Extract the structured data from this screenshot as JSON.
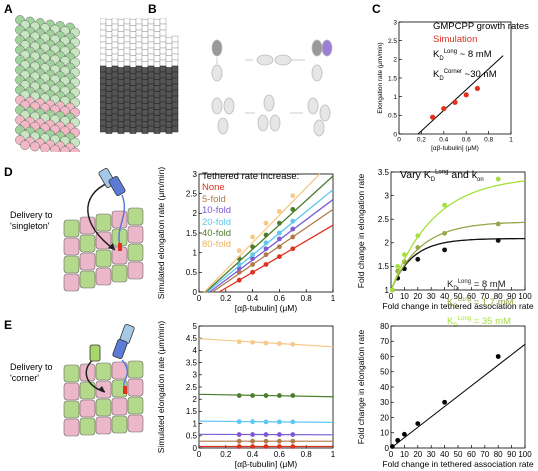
{
  "panel_labels": {
    "A": "A",
    "B": "B",
    "C": "C",
    "D": "D",
    "E": "E"
  },
  "side_labels": {
    "D": [
      "Delivery to",
      "'singleton'"
    ],
    "E": [
      "Delivery to",
      "'corner'"
    ]
  },
  "legend_c": {
    "line1": "GMPCPP growth rates",
    "line2": "Simulation",
    "kd_long": "~ 8 mM",
    "kd_corner": "~30 nM"
  },
  "legend_d": {
    "title": "Tethered rate increase:",
    "items": [
      "None",
      "5-fold",
      "10-fold",
      "20-fold",
      "40-fold",
      "80-fold"
    ]
  },
  "legend_f": {
    "title_prefix": "Vary K",
    "title_suffix": " and k",
    "items": [
      "= 8 mM",
      "= 1.7 mM",
      "= 35 mM"
    ]
  },
  "colors": {
    "none": "#e0301e",
    "f5": "#b07a4a",
    "f10": "#7b5bd6",
    "f20": "#5fc7f0",
    "f40": "#4b7d2c",
    "f80": "#f5c98a",
    "green_light": "#a6df3c",
    "green_mid": "#97a64a",
    "simulation": "#e0301e"
  },
  "chart_data": [
    {
      "type": "scatter",
      "panel": "C",
      "xlabel": "[αβ-tubulin] (μM)",
      "ylabel": "Elongation rate (μm/min)",
      "xlim": [
        0,
        1
      ],
      "ylim": [
        0,
        3
      ],
      "xticks": [
        0,
        0.2,
        0.4,
        0.6,
        0.8,
        1
      ],
      "yticks": [
        0,
        0.5,
        1,
        1.5,
        2,
        2.5,
        3
      ],
      "series": [
        {
          "name": "Simulation",
          "x": [
            0.3,
            0.4,
            0.5,
            0.6,
            0.7
          ],
          "y": [
            0.45,
            0.68,
            0.85,
            1.05,
            1.22
          ]
        }
      ],
      "fit": {
        "x": [
          0.17,
          0.93
        ],
        "y": [
          0,
          2.1
        ]
      }
    },
    {
      "type": "line",
      "panel": "D-mid",
      "xlabel": "[αβ-tubulin] (μM)",
      "ylabel": "Simulated elongation rate (μm/min)",
      "xlim": [
        0,
        1
      ],
      "ylim": [
        0,
        3
      ],
      "xticks": [
        0,
        0.2,
        0.4,
        0.6,
        0.8,
        1
      ],
      "yticks": [
        0,
        0.5,
        1,
        1.5,
        2,
        2.5,
        3
      ],
      "series": [
        {
          "name": "None",
          "x": [
            0.3,
            0.4,
            0.5,
            0.6,
            0.7
          ],
          "y": [
            0.3,
            0.5,
            0.7,
            0.9,
            1.1
          ],
          "fit": [
            [
              0.15,
              0
            ],
            [
              1,
              1.7
            ]
          ]
        },
        {
          "name": "5-fold",
          "x": [
            0.3,
            0.4,
            0.5,
            0.6,
            0.7
          ],
          "y": [
            0.5,
            0.7,
            0.95,
            1.15,
            1.4
          ],
          "fit": [
            [
              0.1,
              0
            ],
            [
              1,
              2.1
            ]
          ]
        },
        {
          "name": "10-fold",
          "x": [
            0.3,
            0.4,
            0.5,
            0.6,
            0.7
          ],
          "y": [
            0.6,
            0.85,
            1.1,
            1.35,
            1.6
          ],
          "fit": [
            [
              0.08,
              0
            ],
            [
              1,
              2.35
            ]
          ]
        },
        {
          "name": "20-fold",
          "x": [
            0.3,
            0.4,
            0.5,
            0.6,
            0.7
          ],
          "y": [
            0.7,
            0.95,
            1.25,
            1.5,
            1.8
          ],
          "fit": [
            [
              0.06,
              0
            ],
            [
              1,
              2.6
            ]
          ]
        },
        {
          "name": "40-fold",
          "x": [
            0.3,
            0.4,
            0.5,
            0.6,
            0.7
          ],
          "y": [
            0.85,
            1.15,
            1.45,
            1.75,
            2.1
          ],
          "fit": [
            [
              0.05,
              0
            ],
            [
              1,
              2.95
            ]
          ]
        },
        {
          "name": "80-fold",
          "x": [
            0.3,
            0.4,
            0.5,
            0.6,
            0.7
          ],
          "y": [
            1.05,
            1.4,
            1.75,
            2.05,
            2.45
          ],
          "fit": [
            [
              0.04,
              0
            ],
            [
              0.9,
              3
            ]
          ]
        }
      ]
    },
    {
      "type": "line",
      "panel": "D-right",
      "xlabel": "Fold change in tethered association rate",
      "ylabel": "Fold change in elongation rate",
      "xlim": [
        0,
        100
      ],
      "ylim": [
        1,
        3.5
      ],
      "xticks": [
        0,
        10,
        20,
        30,
        40,
        50,
        60,
        70,
        80,
        90,
        100
      ],
      "yticks": [
        1,
        1.5,
        2,
        2.5,
        3,
        3.5
      ],
      "series": [
        {
          "name": "8 mM",
          "x": [
            1,
            5,
            10,
            20,
            40,
            80
          ],
          "y": [
            1,
            1.25,
            1.45,
            1.65,
            1.85,
            2.05
          ]
        },
        {
          "name": "1.7 mM",
          "x": [
            1,
            5,
            10,
            20,
            40,
            80
          ],
          "y": [
            1,
            1.4,
            1.6,
            1.9,
            2.2,
            2.4
          ]
        },
        {
          "name": "35 mM",
          "x": [
            1,
            5,
            10,
            20,
            40,
            80
          ],
          "y": [
            1,
            1.5,
            1.75,
            2.15,
            2.8,
            3.35
          ]
        }
      ]
    },
    {
      "type": "line",
      "panel": "E-mid",
      "xlabel": "[αβ-tubulin] (μM)",
      "ylabel": "Simulated elongation rate (μm/min)",
      "xlim": [
        0,
        1
      ],
      "ylim": [
        0,
        5
      ],
      "xticks": [
        0,
        0.2,
        0.4,
        0.6,
        0.8,
        1
      ],
      "yticks": [
        0,
        0.5,
        1,
        1.5,
        2,
        2.5,
        3,
        3.5,
        4,
        4.5,
        5
      ],
      "series": [
        {
          "name": "80-fold",
          "x": [
            0.3,
            0.4,
            0.5,
            0.6,
            0.7
          ],
          "y": [
            4.35,
            4.33,
            4.3,
            4.28,
            4.25
          ],
          "fit": [
            [
              0,
              4.48
            ],
            [
              1,
              4.15
            ]
          ]
        },
        {
          "name": "40-fold",
          "x": [
            0.3,
            0.4,
            0.5,
            0.6,
            0.7
          ],
          "y": [
            2.15,
            2.15,
            2.15,
            2.15,
            2.15
          ],
          "fit": [
            [
              0,
              2.2
            ],
            [
              1,
              2.1
            ]
          ]
        },
        {
          "name": "20-fold",
          "x": [
            0.3,
            0.4,
            0.5,
            0.6,
            0.7
          ],
          "y": [
            1.08,
            1.08,
            1.07,
            1.07,
            1.07
          ],
          "fit": [
            [
              0,
              1.1
            ],
            [
              1,
              1.05
            ]
          ]
        },
        {
          "name": "10-fold",
          "x": [
            0.3,
            0.4,
            0.5,
            0.6,
            0.7
          ],
          "y": [
            0.55,
            0.55,
            0.55,
            0.55,
            0.55
          ],
          "fit": [
            [
              0,
              0.56
            ],
            [
              1,
              0.54
            ]
          ]
        },
        {
          "name": "5-fold",
          "x": [
            0.3,
            0.4,
            0.5,
            0.6,
            0.7
          ],
          "y": [
            0.28,
            0.28,
            0.28,
            0.28,
            0.28
          ],
          "fit": [
            [
              0,
              0.28
            ],
            [
              1,
              0.28
            ]
          ]
        },
        {
          "name": "None",
          "x": [
            0.3,
            0.4,
            0.5,
            0.6,
            0.7
          ],
          "y": [
            0.06,
            0.06,
            0.06,
            0.06,
            0.06
          ],
          "fit": [
            [
              0,
              0.06
            ],
            [
              1,
              0.06
            ]
          ]
        }
      ]
    },
    {
      "type": "scatter",
      "panel": "E-right",
      "xlabel": "Fold change in tethered association rate",
      "ylabel": "Fold change in elongation rate",
      "xlim": [
        0,
        100
      ],
      "ylim": [
        0,
        80
      ],
      "xticks": [
        0,
        10,
        20,
        30,
        40,
        50,
        60,
        70,
        80,
        90,
        100
      ],
      "yticks": [
        0,
        10,
        20,
        30,
        40,
        50,
        60,
        70,
        80
      ],
      "series": [
        {
          "x": [
            1,
            5,
            10,
            20,
            40,
            80
          ],
          "y": [
            1,
            5,
            9,
            16,
            30,
            60
          ]
        }
      ],
      "fit": {
        "x": [
          0,
          100
        ],
        "y": [
          0,
          68
        ]
      }
    }
  ]
}
